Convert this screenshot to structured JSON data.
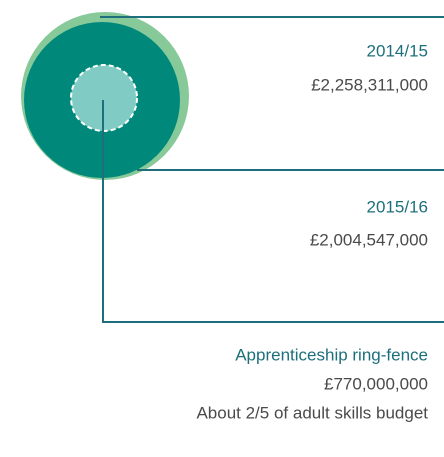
{
  "items": [
    {
      "label": "2014/15",
      "value": "£2,258,311,000"
    },
    {
      "label": "2015/16",
      "value": "£2,004,547,000"
    },
    {
      "label": "Apprenticeship ring-fence",
      "value": "£770,000,000",
      "note": "About 2/5 of adult skills budget"
    }
  ]
}
